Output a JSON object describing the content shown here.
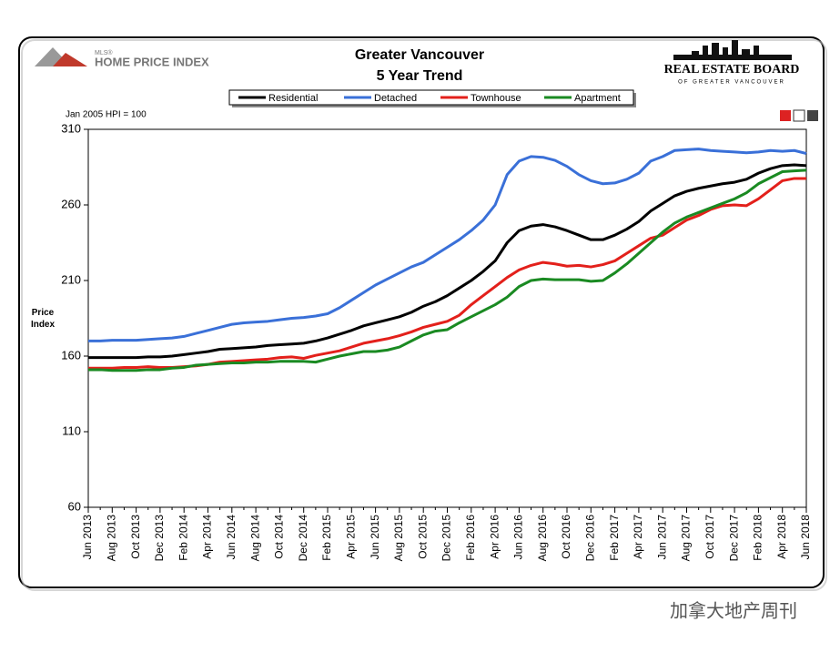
{
  "chart_data": {
    "type": "line",
    "title": "Greater Vancouver",
    "subtitle": "5 Year Trend",
    "ylabel": "Price Index",
    "annotation": "Jan 2005 HPI = 100",
    "categories": [
      "Jun 2013",
      null,
      "Aug 2013",
      null,
      "Oct 2013",
      null,
      "Dec 2013",
      null,
      "Feb 2014",
      null,
      "Apr 2014",
      null,
      "Jun 2014",
      null,
      "Aug 2014",
      null,
      "Oct 2014",
      null,
      "Dec 2014",
      null,
      "Feb 2015",
      null,
      "Apr 2015",
      null,
      "Jun 2015",
      null,
      "Aug 2015",
      null,
      "Oct 2015",
      null,
      "Dec 2015",
      null,
      "Feb 2016",
      null,
      "Apr 2016",
      null,
      "Jun 2016",
      null,
      "Aug 2016",
      null,
      "Oct 2016",
      null,
      "Dec 2016",
      null,
      "Feb 2017",
      null,
      "Apr 2017",
      null,
      "Jun 2017",
      null,
      "Aug 2017",
      null,
      "Oct 2017",
      null,
      "Dec 2017",
      null,
      "Feb 2018",
      null,
      "Apr 2018",
      null,
      "Jun 2018"
    ],
    "series": [
      {
        "name": "Residential",
        "color": "#000000",
        "values": [
          159,
          159,
          159,
          159,
          159,
          159.5,
          159.5,
          160,
          161,
          162,
          163,
          164.5,
          165,
          165.5,
          166,
          167,
          167.5,
          168,
          168.5,
          170,
          172,
          174.5,
          177,
          180,
          182,
          184,
          186,
          189,
          193,
          196,
          200,
          205,
          210,
          216,
          223,
          235,
          243,
          246,
          247,
          245.5,
          243,
          240,
          237,
          237,
          240,
          244,
          249,
          256,
          261,
          266,
          269,
          271,
          272.5,
          274,
          275,
          277,
          281,
          284,
          286,
          286.5,
          286
        ]
      },
      {
        "name": "Detached",
        "color": "#3a70d8",
        "values": [
          170,
          170,
          170.5,
          170.5,
          170.5,
          171,
          171.5,
          172,
          173,
          175,
          177,
          179,
          181,
          182,
          182.5,
          183,
          184,
          185,
          185.5,
          186.5,
          188,
          192,
          197,
          202,
          207,
          211,
          215,
          219,
          222,
          227,
          232,
          237,
          243,
          250,
          260,
          280,
          289,
          292,
          291.5,
          289.5,
          285.5,
          280,
          276,
          274,
          274.5,
          277,
          281,
          289,
          292,
          296,
          296.5,
          297,
          296,
          295.5,
          295,
          294.5,
          295,
          296,
          295.5,
          296,
          294
        ]
      },
      {
        "name": "Townhouse",
        "color": "#e3201b",
        "values": [
          152,
          152,
          152,
          152.5,
          152.5,
          153,
          152.5,
          152.5,
          153,
          153.5,
          154.5,
          156,
          156.5,
          157,
          157.5,
          158,
          159,
          159.5,
          158.5,
          160.5,
          162,
          163.5,
          166,
          168.5,
          170,
          171.5,
          173.5,
          176,
          179,
          181,
          183,
          187,
          194,
          200,
          206,
          212,
          217,
          220,
          222,
          221,
          219.5,
          220,
          219,
          220.5,
          223,
          228,
          233,
          238,
          240,
          245,
          250,
          253,
          257,
          259.5,
          260,
          259.5,
          264,
          270,
          276,
          277.5,
          277.5
        ]
      },
      {
        "name": "Apartment",
        "color": "#1a8a22",
        "values": [
          151,
          151,
          150.5,
          150.5,
          150.5,
          151,
          151,
          152,
          152.5,
          154,
          154.5,
          155,
          155.5,
          155.5,
          156,
          156,
          156.5,
          156.5,
          156.5,
          156,
          158,
          160,
          161.5,
          163,
          163,
          164,
          166,
          170,
          174,
          176.5,
          177.5,
          182,
          186,
          190,
          194,
          199,
          206,
          210,
          211,
          210.5,
          210.5,
          210.5,
          209.5,
          210,
          215,
          221,
          228,
          235,
          242,
          248,
          252,
          255,
          258,
          261,
          264,
          268,
          274,
          278,
          282,
          282.5,
          283
        ]
      }
    ],
    "ylim": [
      60,
      310
    ],
    "yticks": [
      60,
      110,
      160,
      210,
      260,
      310
    ],
    "grid": false,
    "legend": "top"
  },
  "branding": {
    "left_small": "MLS®",
    "left": "HOME PRICE INDEX",
    "right": "REAL ESTATE BOARD",
    "right_sub": "OF GREATER VANCOUVER",
    "watermark": "加拿大地产周刊"
  }
}
